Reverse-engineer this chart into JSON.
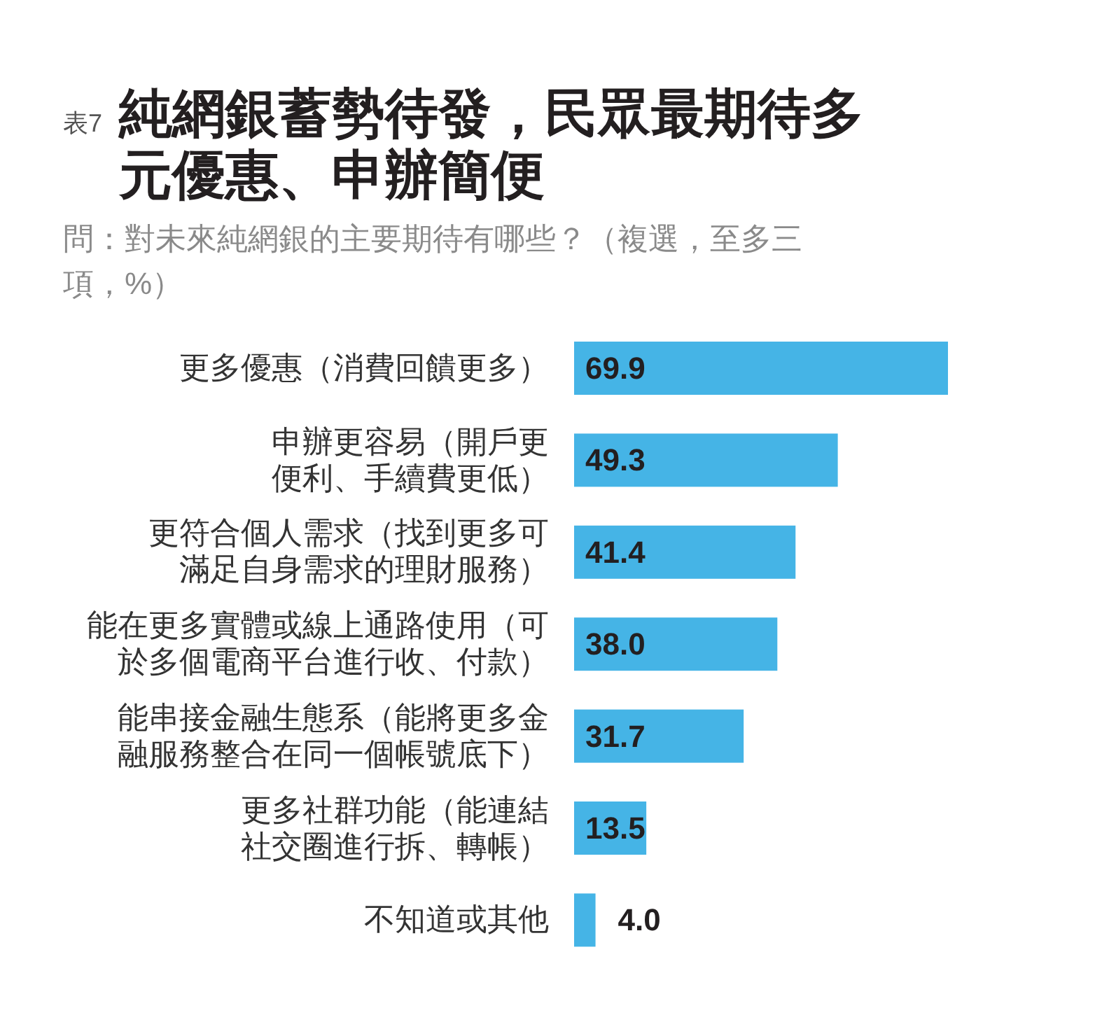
{
  "chart_data": {
    "type": "bar",
    "orientation": "horizontal",
    "title": "純網銀蓄勢待發，民眾最期待多元優惠、申辦簡便",
    "subtitle": "問：對未來純網銀的主要期待有哪些？（複選，至多三項，%）",
    "annotations": [
      "表7"
    ],
    "categories": [
      "更多優惠（消費回饋更多）",
      "申辦更容易（開戶更便利、手續費更低）",
      "更符合個人需求（找到更多可滿足自身需求的理財服務）",
      "能在更多實體或線上通路使用（可於多個電商平台進行收、付款）",
      "能串接金融生態系（能將更多金融服務整合在同一個帳號底下）",
      "更多社群功能（能連結社交圈進行拆、轉帳）",
      "不知道或其他"
    ],
    "values": [
      69.9,
      49.3,
      41.4,
      38.0,
      31.7,
      13.5,
      4.0
    ],
    "value_labels": [
      "69.9",
      "49.3",
      "41.4",
      "38.0",
      "31.7",
      "13.5",
      "4.0"
    ],
    "color": "#45b4e6"
  }
}
